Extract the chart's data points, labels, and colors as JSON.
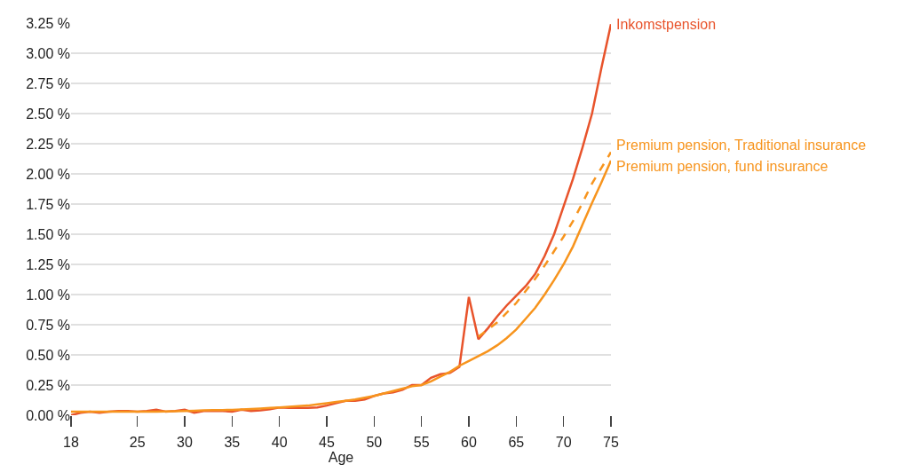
{
  "chart_data": {
    "type": "line",
    "xlabel": "Age",
    "x": [
      18,
      19,
      20,
      21,
      22,
      23,
      24,
      25,
      26,
      27,
      28,
      29,
      30,
      31,
      32,
      33,
      34,
      35,
      36,
      37,
      38,
      39,
      40,
      41,
      42,
      43,
      44,
      45,
      46,
      47,
      48,
      49,
      50,
      51,
      52,
      53,
      54,
      55,
      56,
      57,
      58,
      59,
      60,
      61,
      62,
      63,
      64,
      65,
      66,
      67,
      68,
      69,
      70,
      71,
      72,
      73,
      74,
      75
    ],
    "series": [
      {
        "name": "Inkomstpension",
        "color": "#e8532b",
        "line_style": "solid",
        "values": [
          0.0,
          0.02,
          0.03,
          0.02,
          0.03,
          0.035,
          0.035,
          0.03,
          0.035,
          0.045,
          0.03,
          0.035,
          0.045,
          0.02,
          0.035,
          0.035,
          0.035,
          0.03,
          0.045,
          0.035,
          0.04,
          0.05,
          0.065,
          0.06,
          0.06,
          0.06,
          0.065,
          0.08,
          0.1,
          0.12,
          0.12,
          0.13,
          0.16,
          0.18,
          0.19,
          0.21,
          0.25,
          0.25,
          0.31,
          0.34,
          0.35,
          0.4,
          0.98,
          0.63,
          0.72,
          0.82,
          0.91,
          0.99,
          1.07,
          1.17,
          1.32,
          1.5,
          1.73,
          1.96,
          2.22,
          2.5,
          2.88,
          3.24
        ]
      },
      {
        "name": "Premium pension, Traditional insurance",
        "color": "#f7941d",
        "line_style": "dashed",
        "values": [
          null,
          null,
          null,
          null,
          null,
          null,
          null,
          null,
          null,
          null,
          null,
          null,
          null,
          null,
          null,
          null,
          null,
          null,
          null,
          null,
          null,
          null,
          null,
          null,
          null,
          null,
          null,
          null,
          null,
          null,
          null,
          null,
          null,
          null,
          null,
          null,
          null,
          null,
          null,
          null,
          null,
          null,
          null,
          0.65,
          0.71,
          0.77,
          0.85,
          0.93,
          1.03,
          1.13,
          1.24,
          1.36,
          1.48,
          1.61,
          1.76,
          1.92,
          2.05,
          2.18
        ]
      },
      {
        "name": "Premium pension, fund insurance",
        "color": "#f7941d",
        "line_style": "solid",
        "values": [
          0.03,
          0.03,
          0.03,
          0.03,
          0.03,
          0.03,
          0.03,
          0.03,
          0.03,
          0.03,
          0.032,
          0.033,
          0.035,
          0.037,
          0.04,
          0.042,
          0.043,
          0.045,
          0.048,
          0.052,
          0.056,
          0.06,
          0.065,
          0.07,
          0.075,
          0.08,
          0.09,
          0.1,
          0.11,
          0.12,
          0.13,
          0.145,
          0.16,
          0.18,
          0.2,
          0.22,
          0.24,
          0.25,
          0.28,
          0.32,
          0.36,
          0.41,
          0.45,
          0.49,
          0.53,
          0.58,
          0.64,
          0.71,
          0.8,
          0.89,
          1.0,
          1.12,
          1.25,
          1.4,
          1.58,
          1.76,
          1.93,
          2.11
        ]
      }
    ],
    "xlim": [
      18,
      75
    ],
    "xticks": [
      18,
      25,
      30,
      35,
      40,
      45,
      50,
      55,
      60,
      65,
      70,
      75
    ],
    "ylim": [
      0,
      3.25
    ],
    "yticks": [
      {
        "value": 0,
        "label": "0.00 %"
      },
      {
        "value": 0.25,
        "label": "0.25 %"
      },
      {
        "value": 0.5,
        "label": "0.50 %"
      },
      {
        "value": 0.75,
        "label": "0.75 %"
      },
      {
        "value": 1,
        "label": "1.00 %"
      },
      {
        "value": 1.25,
        "label": "1.25 %"
      },
      {
        "value": 1.5,
        "label": "1.50 %"
      },
      {
        "value": 1.75,
        "label": "1.75 %"
      },
      {
        "value": 2,
        "label": "2.00 %"
      },
      {
        "value": 2.25,
        "label": "2.25 %"
      },
      {
        "value": 2.5,
        "label": "2.50 %"
      },
      {
        "value": 2.75,
        "label": "2.75 %"
      },
      {
        "value": 3,
        "label": "3.00 %"
      },
      {
        "value": 3.25,
        "label": "3.25 %"
      }
    ],
    "grid": "y",
    "legend": false,
    "marker": "none"
  }
}
